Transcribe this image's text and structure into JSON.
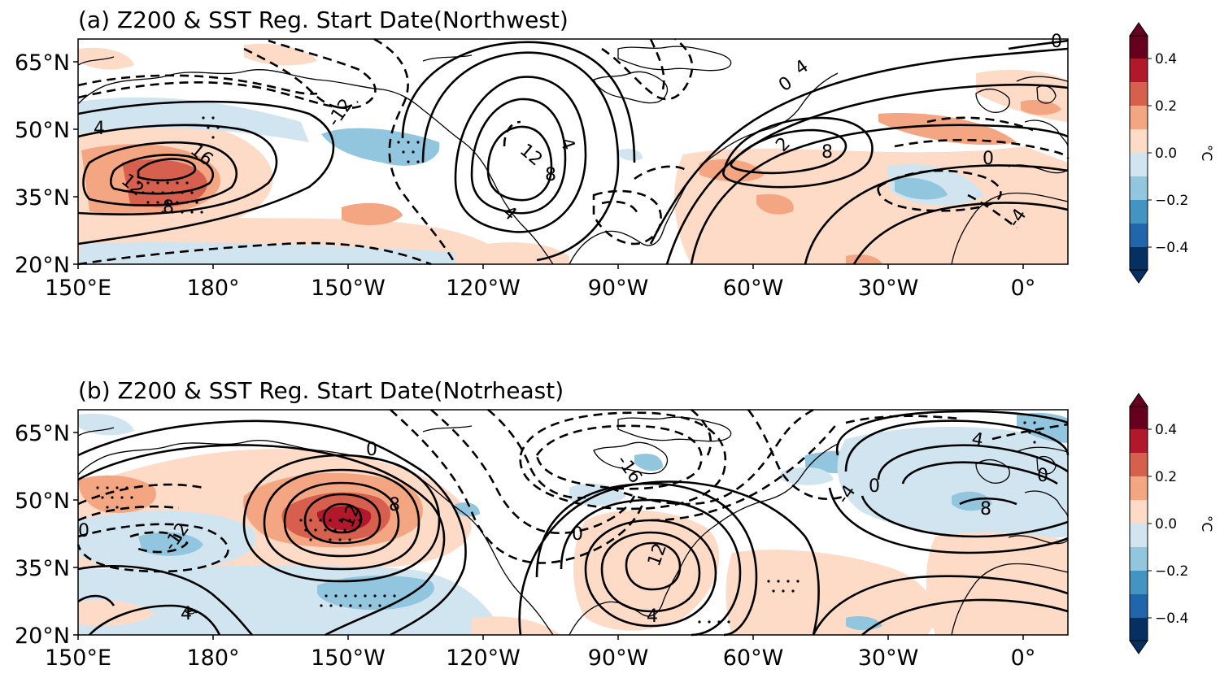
{
  "panels": [
    {
      "id": "a",
      "title": "(a) Z200 & SST Reg. Start Date(Northwest)",
      "lat_labels": [
        "65°N",
        "50°N",
        "35°N",
        "20°N"
      ],
      "lon_labels": [
        "150°E",
        "180°",
        "150°W",
        "120°W",
        "90°W",
        "60°W",
        "30°W",
        "0°"
      ],
      "contour_labels": [
        "4",
        "-12",
        "16",
        "12",
        "8",
        "12",
        "4",
        "8",
        "4",
        "0",
        "4",
        "2",
        "8",
        "0",
        "-4",
        "0"
      ]
    },
    {
      "id": "b",
      "title": "(b) Z200 & SST Reg. Start Date(Notrheast)",
      "lat_labels": [
        "65°N",
        "50°N",
        "35°N",
        "20°N"
      ],
      "lon_labels": [
        "150°E",
        "180°",
        "150°W",
        "120°W",
        "90°W",
        "60°W",
        "30°W",
        "0°"
      ],
      "contour_labels": [
        "0",
        "-12",
        "0",
        "12",
        "8",
        "4",
        "-16",
        "-4",
        "0",
        "12",
        "4",
        "0",
        "8",
        "4",
        "0"
      ]
    }
  ],
  "colorbar": {
    "ticks": [
      "0.4",
      "0.2",
      "0.0",
      "−0.2",
      "−0.4"
    ],
    "unit": "°C",
    "colors": [
      "#053061",
      "#2166ac",
      "#4393c3",
      "#92c5de",
      "#d1e5f0",
      "#f7f7f7",
      "#fddbc7",
      "#f4a582",
      "#d6604d",
      "#b2182b",
      "#67001f"
    ]
  }
}
